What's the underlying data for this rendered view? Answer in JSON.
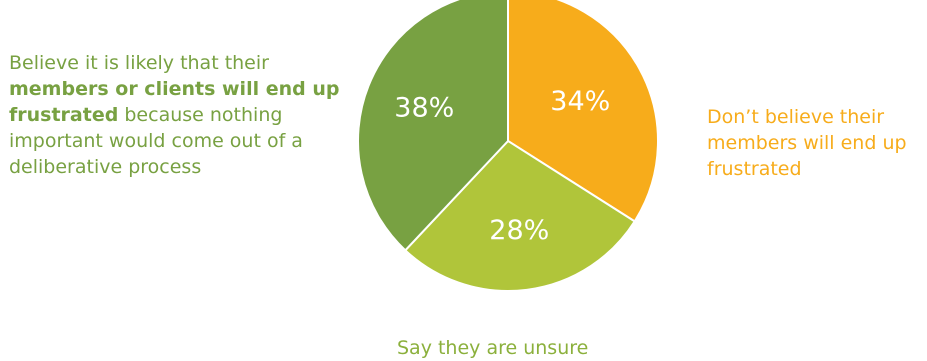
{
  "chart_data": {
    "type": "pie",
    "slices": [
      {
        "label": "34%",
        "value": 34,
        "color": "#F7AC1B",
        "text_color": "#ffffff"
      },
      {
        "label": "28%",
        "value": 28,
        "color": "#B0C53A",
        "text_color": "#ffffff"
      },
      {
        "label": "38%",
        "value": 38,
        "color": "#78A142",
        "text_color": "#ffffff"
      }
    ],
    "annotations": {
      "left": {
        "pre": "Believe it is likely that their ",
        "strong": "members or clients will end up frustrated",
        "post": " because nothing important would come out of a deliberative process",
        "color": "#78A142"
      },
      "right": {
        "text": "Don’t believe their members will end up frustrated",
        "color": "#F7AC1B"
      },
      "bottom": {
        "text": "Say they are unsure",
        "color": "#8BB03C"
      }
    },
    "start": "12 o'clock",
    "direction": "clockwise"
  }
}
